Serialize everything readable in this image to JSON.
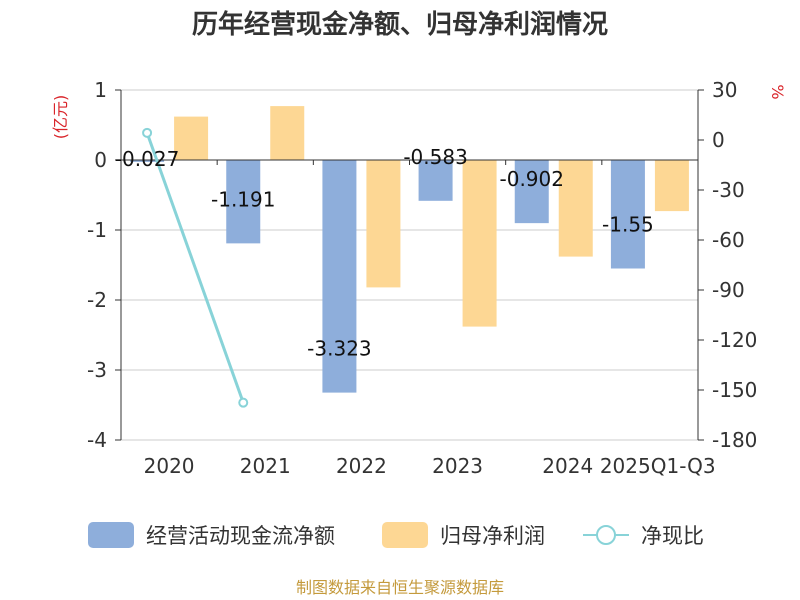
{
  "chart_data": {
    "type": "bar",
    "title": "历年经营现金净额、归母净利润情况",
    "left_unit": "(亿元)",
    "right_unit": "%",
    "categories": [
      "2020",
      "2021",
      "2022",
      "2023",
      "2024",
      "2025Q1-Q3"
    ],
    "ylim_left": [
      -4,
      1
    ],
    "yticks_left": [
      1,
      0,
      -1,
      -2,
      -3,
      -4
    ],
    "ylim_right": [
      -180,
      30
    ],
    "yticks_right": [
      30,
      0,
      -30,
      -60,
      -90,
      -120,
      -150,
      -180
    ],
    "series": [
      {
        "name": "经营活动现金流净额",
        "type": "bar",
        "axis": "left",
        "color": "#8eaedb",
        "values": [
          -0.027,
          -1.191,
          -3.323,
          -0.583,
          -0.902,
          -1.55
        ],
        "labels": [
          "-0.027",
          "-1.191",
          "-3.323",
          "-0.583",
          "-0.902",
          "-1.55"
        ]
      },
      {
        "name": "归母净利润",
        "type": "bar",
        "axis": "left",
        "color": "#fdd794",
        "values": [
          0.62,
          0.77,
          -1.82,
          -2.38,
          -1.38,
          -0.73
        ]
      },
      {
        "name": "净现比",
        "type": "line",
        "axis": "right",
        "color": "#88d3d8",
        "values": [
          4.3,
          -157.6,
          null,
          null,
          null,
          null
        ]
      }
    ]
  },
  "footer": {
    "source": "制图数据来自恒生聚源数据库"
  }
}
